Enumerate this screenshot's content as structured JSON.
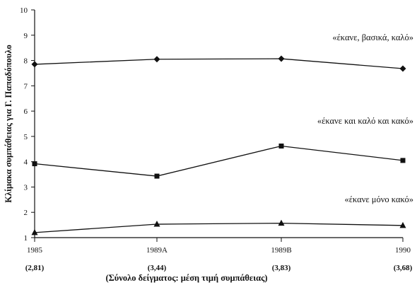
{
  "chart_data": {
    "type": "line",
    "x": [
      "1985",
      "1989A",
      "1989B",
      "1990"
    ],
    "x_sublabels": [
      "(2,81)",
      "(3,44)",
      "(3,83)",
      "(3,68)"
    ],
    "ylim": [
      1,
      10
    ],
    "yticks": [
      1,
      2,
      3,
      4,
      5,
      6,
      7,
      8,
      9,
      10
    ],
    "ylabel": "Κλίμακα συμπάθειας για Γ. Παπαδόπουλο",
    "xlabel": "(Σύνολο δείγματος: μέση τιμή συμπάθειας)",
    "grid": false,
    "series": [
      {
        "name": "«έκανε, βασικά, καλό»",
        "marker": "diamond",
        "values": [
          7.85,
          8.05,
          8.07,
          7.68
        ]
      },
      {
        "name": "«έκανε και καλό και κακό»",
        "marker": "square",
        "values": [
          3.92,
          3.43,
          4.62,
          4.05
        ]
      },
      {
        "name": "«έκανε μόνο κακό»",
        "marker": "triangle",
        "values": [
          1.2,
          1.53,
          1.57,
          1.48
        ]
      }
    ]
  }
}
